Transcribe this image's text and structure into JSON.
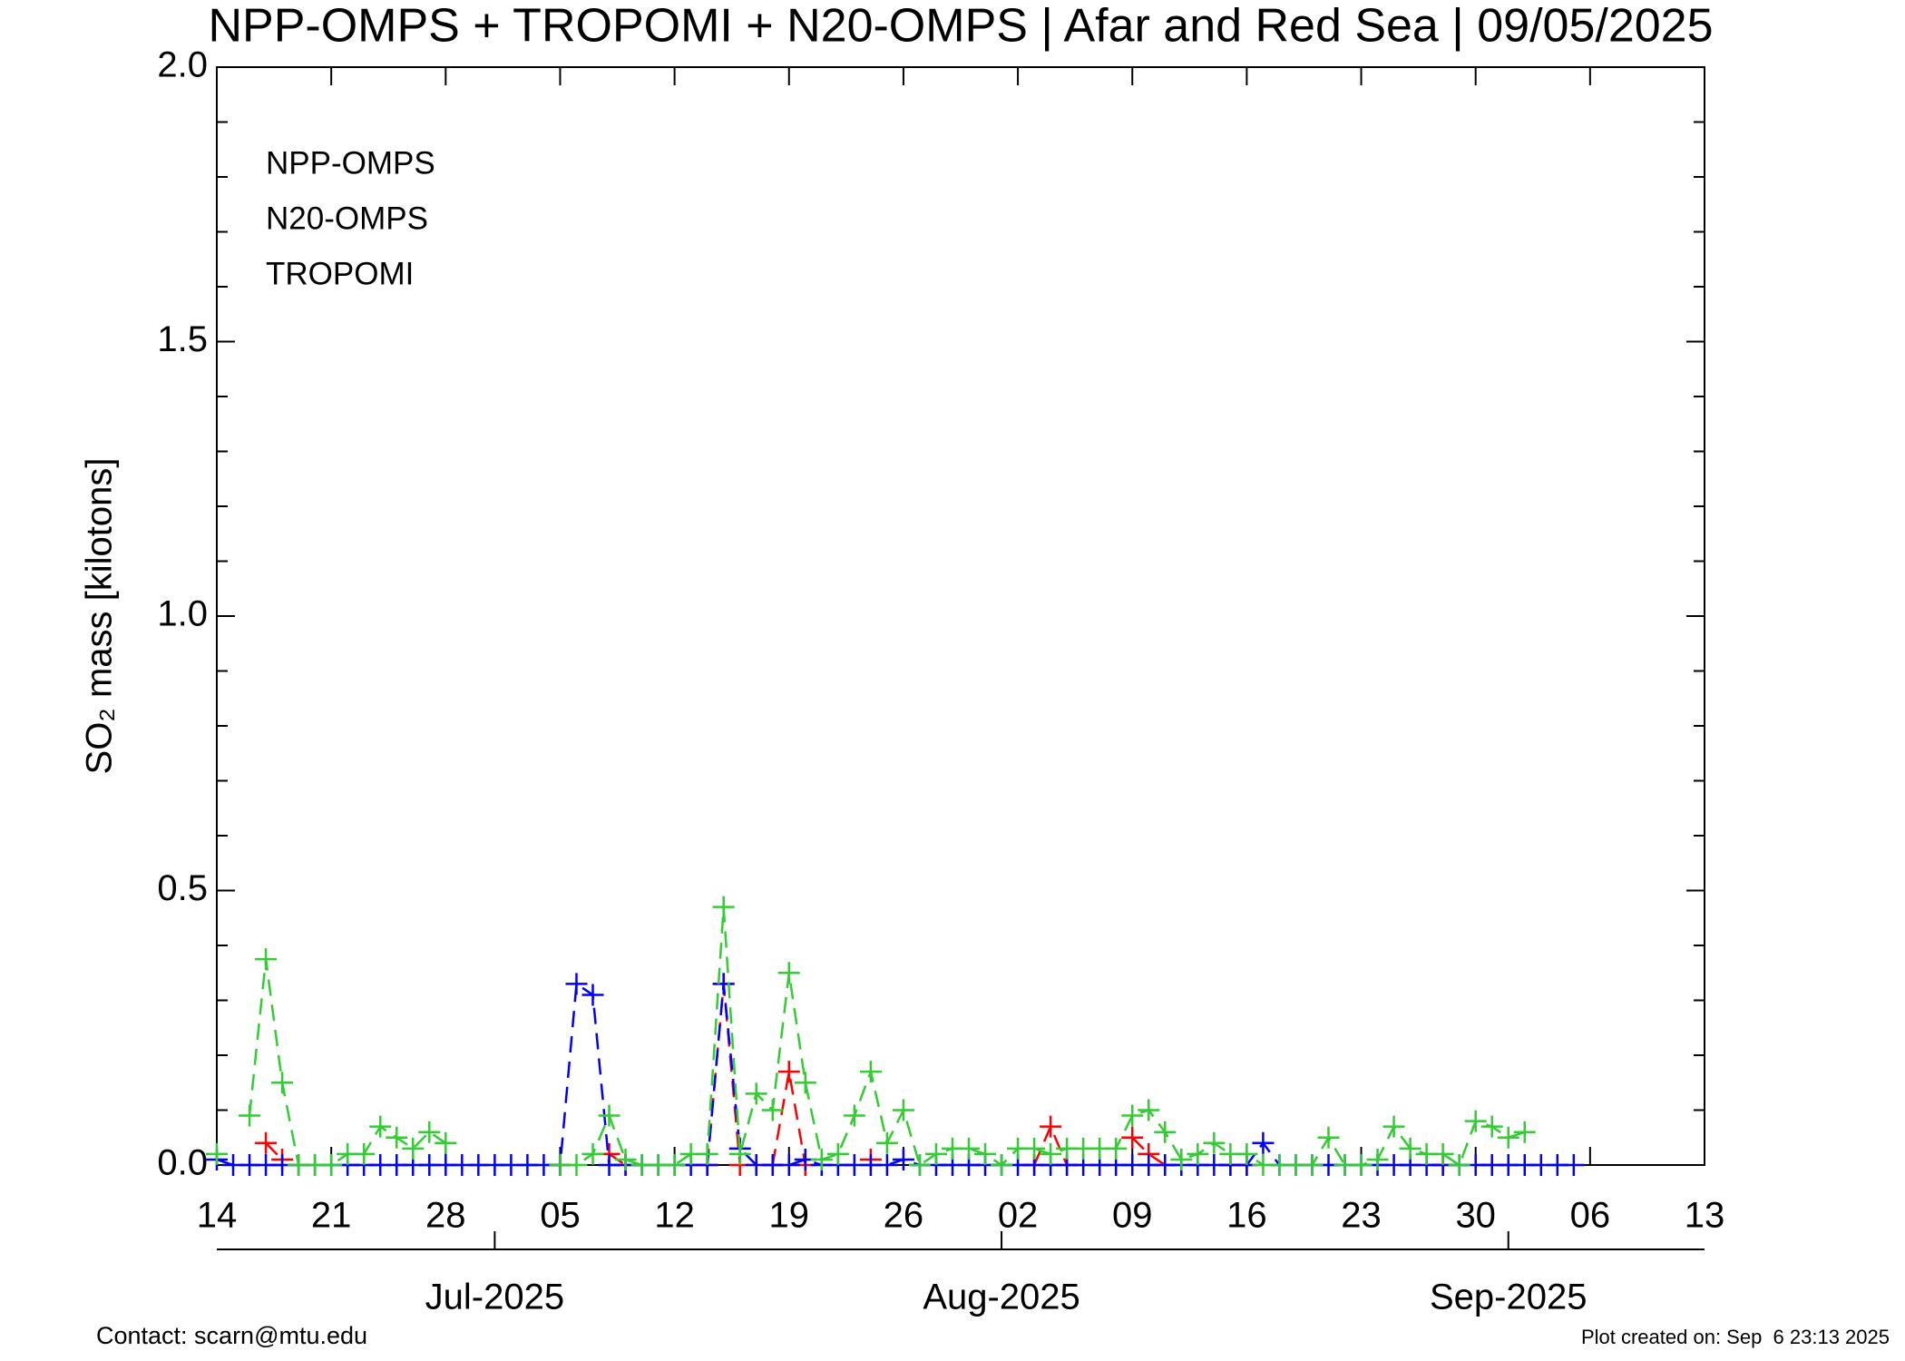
{
  "chart_data": {
    "type": "line",
    "title": "NPP-OMPS + TROPOMI + N20-OMPS | Afar and Red Sea | 09/05/2025",
    "y_label": "SO₂ mass [kilotons]",
    "x": [
      "2025-06-14",
      "2025-06-15",
      "2025-06-16",
      "2025-06-17",
      "2025-06-18",
      "2025-06-19",
      "2025-06-20",
      "2025-06-21",
      "2025-06-22",
      "2025-06-23",
      "2025-06-24",
      "2025-06-25",
      "2025-06-26",
      "2025-06-27",
      "2025-06-28",
      "2025-06-29",
      "2025-06-30",
      "2025-07-01",
      "2025-07-02",
      "2025-07-03",
      "2025-07-04",
      "2025-07-05",
      "2025-07-06",
      "2025-07-07",
      "2025-07-08",
      "2025-07-09",
      "2025-07-10",
      "2025-07-11",
      "2025-07-12",
      "2025-07-13",
      "2025-07-14",
      "2025-07-15",
      "2025-07-16",
      "2025-07-17",
      "2025-07-18",
      "2025-07-19",
      "2025-07-20",
      "2025-07-21",
      "2025-07-22",
      "2025-07-23",
      "2025-07-24",
      "2025-07-25",
      "2025-07-26",
      "2025-07-27",
      "2025-07-28",
      "2025-07-29",
      "2025-07-30",
      "2025-07-31",
      "2025-08-01",
      "2025-08-02",
      "2025-08-03",
      "2025-08-04",
      "2025-08-05",
      "2025-08-06",
      "2025-08-07",
      "2025-08-08",
      "2025-08-09",
      "2025-08-10",
      "2025-08-11",
      "2025-08-12",
      "2025-08-13",
      "2025-08-14",
      "2025-08-15",
      "2025-08-16",
      "2025-08-17",
      "2025-08-18",
      "2025-08-19",
      "2025-08-20",
      "2025-08-21",
      "2025-08-22",
      "2025-08-23",
      "2025-08-24",
      "2025-08-25",
      "2025-08-26",
      "2025-08-27",
      "2025-08-28",
      "2025-08-29",
      "2025-08-30",
      "2025-08-31",
      "2025-09-01",
      "2025-09-02",
      "2025-09-03",
      "2025-09-04",
      "2025-09-05"
    ],
    "series": [
      {
        "name": "NPP-OMPS",
        "color": "#ff0000",
        "values": [
          null,
          null,
          null,
          0.04,
          0.01,
          null,
          null,
          null,
          null,
          null,
          null,
          null,
          null,
          null,
          null,
          null,
          null,
          null,
          null,
          null,
          null,
          0,
          null,
          null,
          0.02,
          0,
          null,
          null,
          null,
          null,
          0,
          0.33,
          0,
          null,
          0,
          0.17,
          0,
          null,
          null,
          null,
          0.01,
          null,
          null,
          null,
          null,
          null,
          null,
          null,
          null,
          null,
          0,
          0.07,
          0,
          null,
          null,
          null,
          0.05,
          0.02,
          0,
          null,
          null,
          null,
          0,
          0,
          null,
          null,
          null,
          null,
          null,
          null,
          null,
          null,
          null,
          null,
          null,
          0,
          null,
          null,
          0,
          null,
          null,
          null,
          null,
          null
        ]
      },
      {
        "name": "N20-OMPS",
        "color": "#0000ff",
        "values": [
          0.01,
          0,
          0,
          0,
          0,
          0,
          0,
          0,
          0,
          0,
          0,
          0,
          0,
          0,
          0,
          0,
          0,
          0,
          0,
          0,
          0,
          0,
          0.33,
          0.31,
          0,
          0,
          0,
          0,
          0,
          0,
          0,
          0.33,
          0.03,
          0,
          0,
          0,
          0.01,
          0,
          0,
          0,
          0,
          0,
          0.01,
          0,
          0,
          0,
          0,
          0,
          0,
          0,
          0,
          0,
          0,
          0,
          0,
          0,
          0,
          0,
          0,
          0,
          0,
          0,
          0,
          0,
          0.04,
          0,
          0,
          0,
          0,
          0,
          0,
          0,
          0,
          0,
          0,
          0,
          0,
          0,
          0,
          0,
          0,
          0,
          0,
          0
        ]
      },
      {
        "name": "TROPOMI",
        "color": "#33cc33",
        "values": [
          0.02,
          null,
          0.09,
          0.375,
          0.15,
          0,
          0,
          0,
          0.02,
          0.02,
          0.07,
          0.05,
          0.03,
          0.06,
          0.04,
          null,
          null,
          null,
          null,
          null,
          null,
          0,
          0,
          0.02,
          0.09,
          0.01,
          0,
          0,
          0,
          0.02,
          0.02,
          0.47,
          0.02,
          0.13,
          0.1,
          0.35,
          0.15,
          0.01,
          0.02,
          0.09,
          0.17,
          0.04,
          0.1,
          0,
          0.02,
          0.03,
          0.03,
          0.02,
          0,
          0.03,
          0.03,
          0.02,
          0.03,
          0.03,
          0.03,
          0.03,
          0.09,
          0.1,
          0.06,
          0.01,
          0.02,
          0.04,
          0.02,
          0.02,
          0,
          0,
          0,
          0,
          0.05,
          0,
          0,
          0.01,
          0.07,
          0.03,
          0.02,
          0.02,
          0,
          0.08,
          0.07,
          0.05,
          0.06,
          null,
          null,
          null
        ]
      }
    ],
    "xlim": [
      "2025-06-14",
      "2025-09-13"
    ],
    "xticks": [
      {
        "value": "2025-06-14",
        "label": "14"
      },
      {
        "value": "2025-06-21",
        "label": "21"
      },
      {
        "value": "2025-06-28",
        "label": "28"
      },
      {
        "value": "2025-07-05",
        "label": "05"
      },
      {
        "value": "2025-07-12",
        "label": "12"
      },
      {
        "value": "2025-07-19",
        "label": "19"
      },
      {
        "value": "2025-07-26",
        "label": "26"
      },
      {
        "value": "2025-08-02",
        "label": "02"
      },
      {
        "value": "2025-08-09",
        "label": "09"
      },
      {
        "value": "2025-08-16",
        "label": "16"
      },
      {
        "value": "2025-08-23",
        "label": "23"
      },
      {
        "value": "2025-08-30",
        "label": "30"
      },
      {
        "value": "2025-09-06",
        "label": "06"
      },
      {
        "value": "2025-09-13",
        "label": "13"
      }
    ],
    "month_ticks": [
      {
        "value": "2025-07-01",
        "label": "Jul-2025"
      },
      {
        "value": "2025-08-01",
        "label": "Aug-2025"
      },
      {
        "value": "2025-09-01",
        "label": "Sep-2025"
      }
    ],
    "ylim": [
      0,
      2
    ],
    "yticks": [
      {
        "value": 0,
        "label": "0.0"
      },
      {
        "value": 0.5,
        "label": "0.5"
      },
      {
        "value": 1,
        "label": "1.0"
      },
      {
        "value": 1.5,
        "label": "1.5"
      },
      {
        "value": 2,
        "label": "2.0"
      }
    ],
    "yticks_minor": [
      0.1,
      0.2,
      0.3,
      0.4,
      0.6,
      0.7,
      0.8,
      0.9,
      1.1,
      1.2,
      1.3,
      1.4,
      1.6,
      1.7,
      1.8,
      1.9
    ],
    "legend": "upper left",
    "contact": "Contact: scarn@mtu.edu",
    "created": "Plot created on: Sep  6 23:13 2025",
    "footer_color": "#ff0000"
  }
}
